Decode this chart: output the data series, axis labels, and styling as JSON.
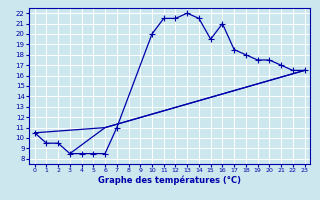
{
  "xlabel": "Graphe des températures (°C)",
  "bg_color": "#cce8ee",
  "grid_color": "#ffffff",
  "line_color": "#0000aa",
  "xlim": [
    -0.5,
    23.5
  ],
  "ylim": [
    7.5,
    22.5
  ],
  "xticks": [
    0,
    1,
    2,
    3,
    4,
    5,
    6,
    7,
    8,
    9,
    10,
    11,
    12,
    13,
    14,
    15,
    16,
    17,
    18,
    19,
    20,
    21,
    22,
    23
  ],
  "yticks": [
    8,
    9,
    10,
    11,
    12,
    13,
    14,
    15,
    16,
    17,
    18,
    19,
    20,
    21,
    22
  ],
  "main_x": [
    0,
    1,
    2,
    3,
    4,
    5,
    6,
    7,
    10,
    11,
    12,
    13,
    14,
    15,
    16,
    17,
    18,
    19,
    20,
    21,
    22,
    23
  ],
  "main_y": [
    10.5,
    9.5,
    9.5,
    8.5,
    8.5,
    8.5,
    8.5,
    11.0,
    20.0,
    21.5,
    21.5,
    22.0,
    21.5,
    19.5,
    21.0,
    18.5,
    18.0,
    17.5,
    17.5,
    17.0,
    16.5,
    16.5
  ],
  "line1_x": [
    0,
    6,
    23
  ],
  "line1_y": [
    10.5,
    11.0,
    16.5
  ],
  "line2_x": [
    3,
    6,
    23
  ],
  "line2_y": [
    8.5,
    11.0,
    16.5
  ]
}
